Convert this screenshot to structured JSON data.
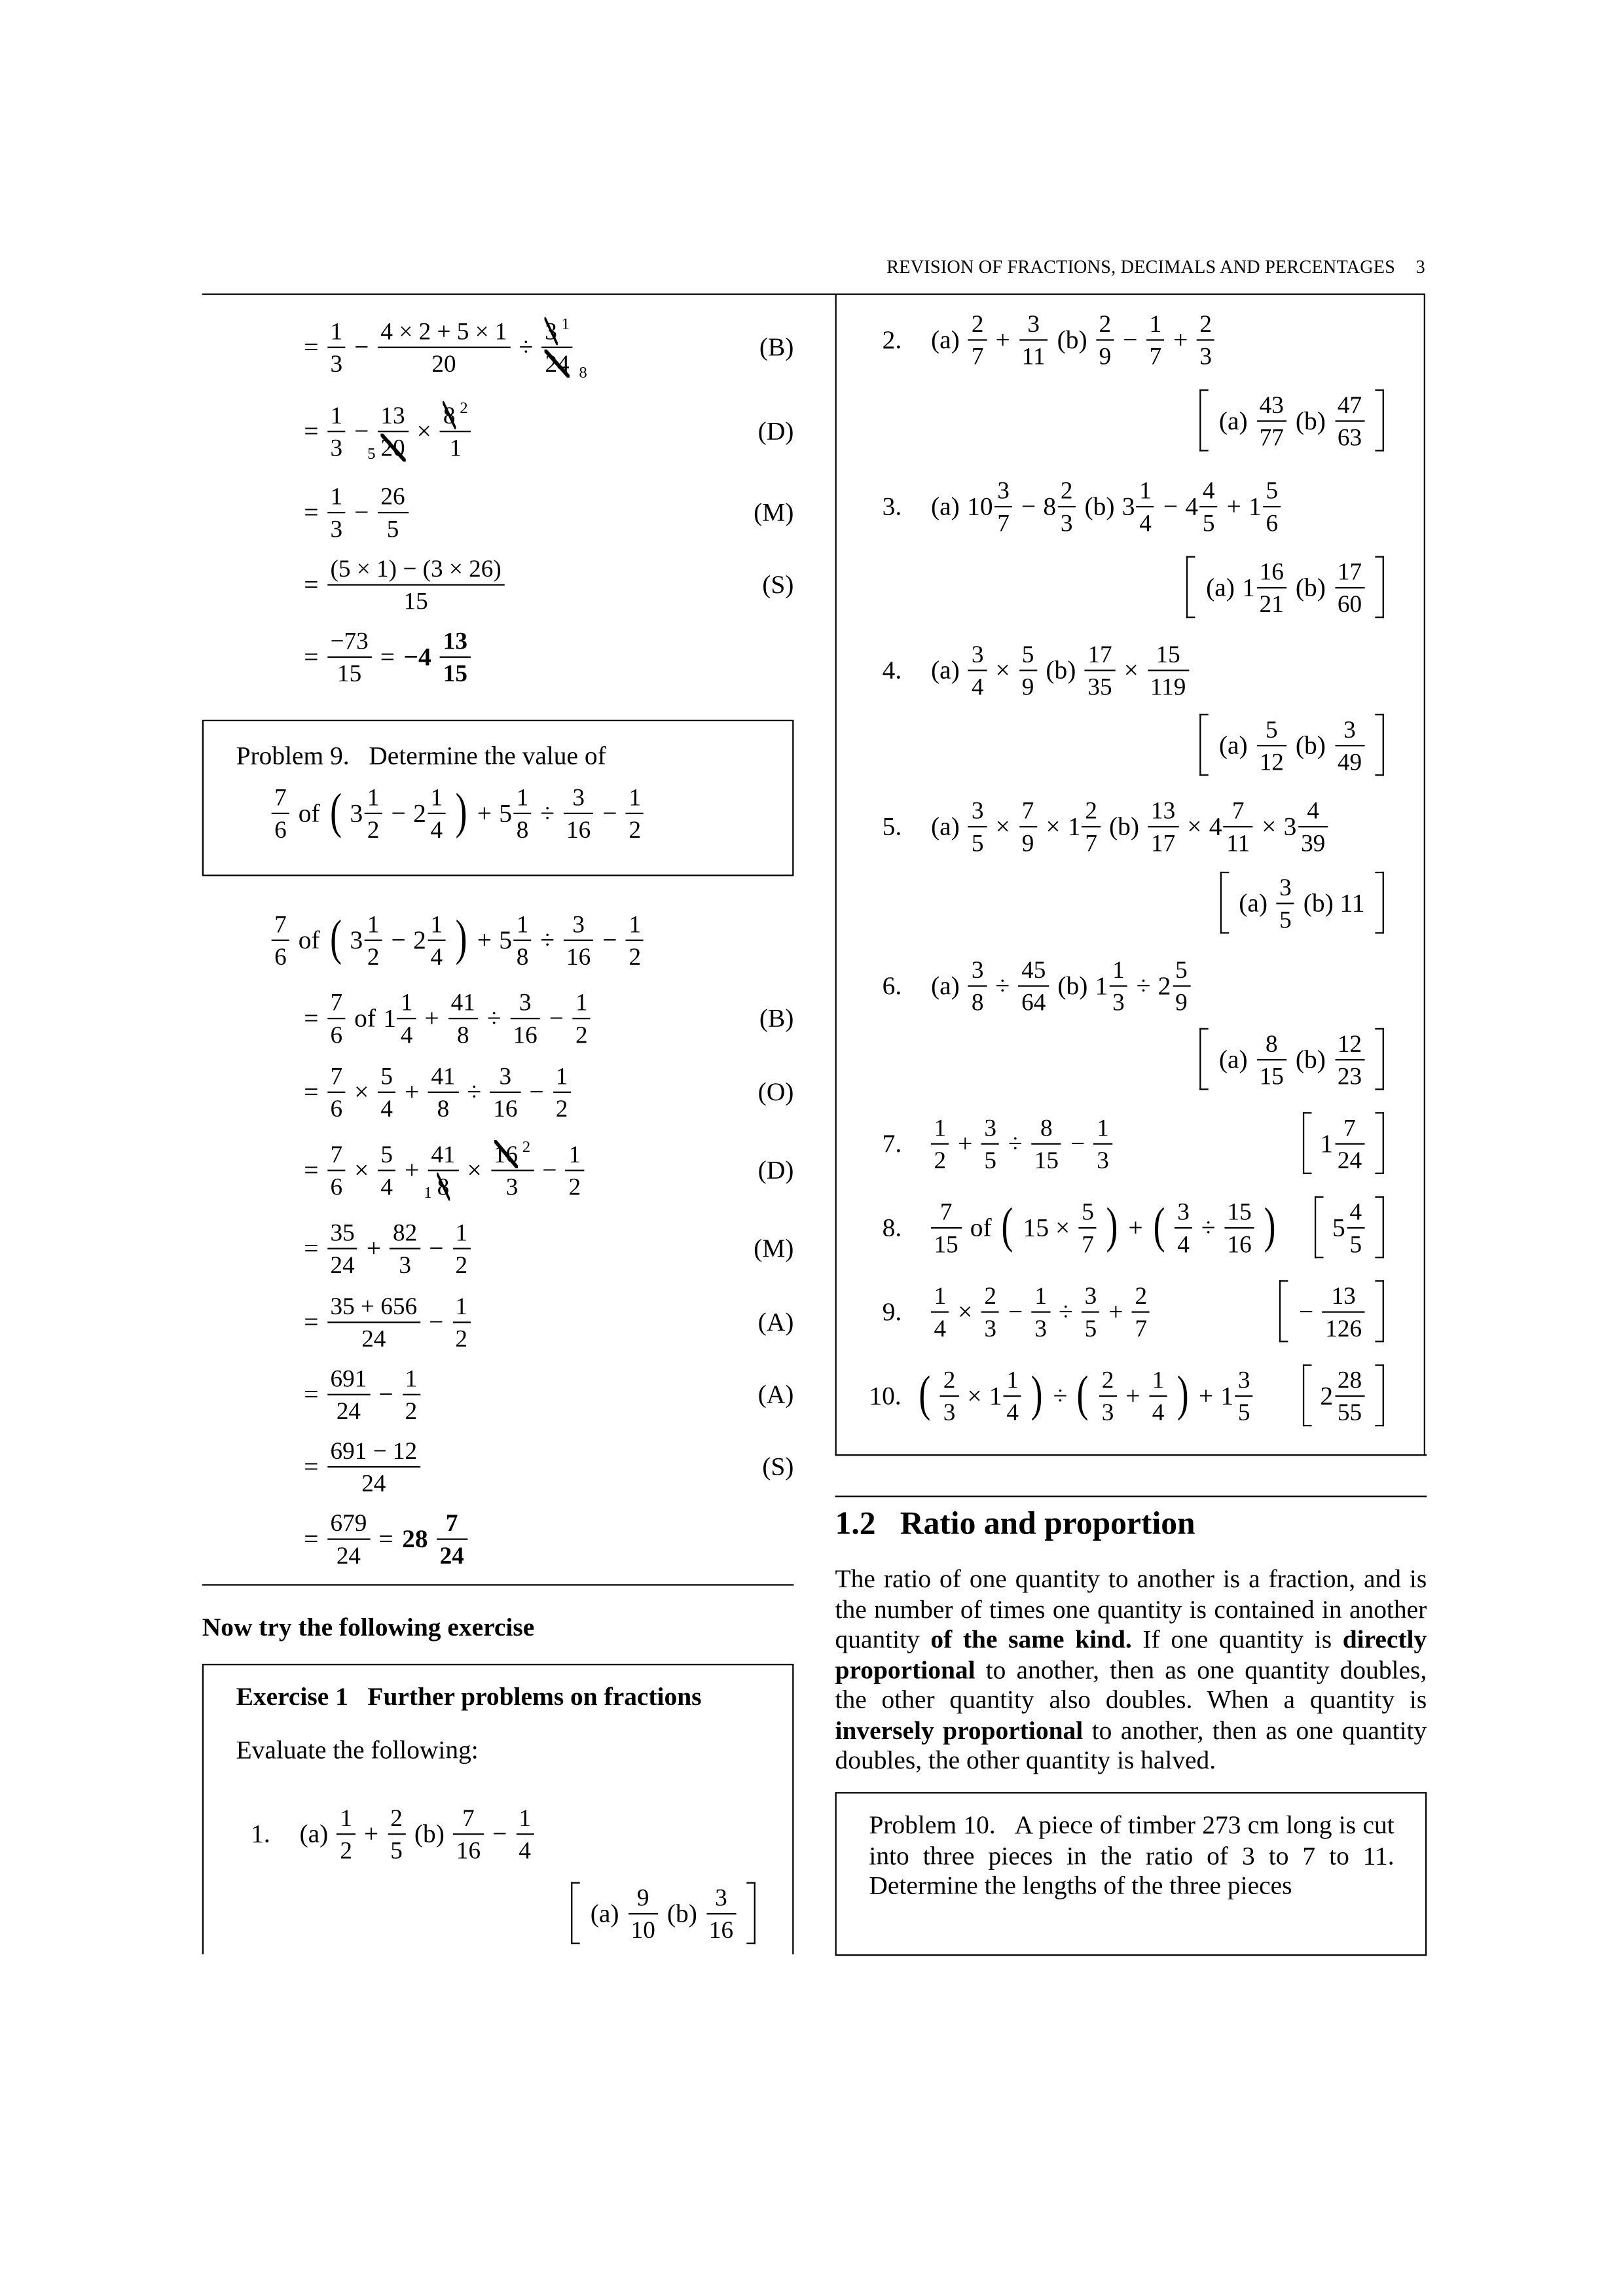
{
  "header": {
    "title": "REVISION OF FRACTIONS, DECIMALS AND PERCENTAGES",
    "page": "3"
  },
  "prev_solution": [
    {
      "expr": [
        "=",
        {
          "f": [
            "1",
            "3"
          ]
        },
        "−",
        {
          "f": [
            "4 × 2 + 5 × 1",
            "20"
          ]
        },
        "÷",
        {
          "f": [
            "3",
            "24"
          ],
          "sn": "1",
          "sd": "8"
        }
      ],
      "tag": "(B)"
    },
    {
      "expr": [
        "=",
        {
          "f": [
            "1",
            "3"
          ]
        },
        "−",
        {
          "f": [
            "13",
            "20"
          ],
          "sdl": "5"
        },
        "×",
        {
          "f": [
            "8",
            "1"
          ],
          "sn": "2"
        }
      ],
      "tag": "(D)"
    },
    {
      "expr": [
        "=",
        {
          "f": [
            "1",
            "3"
          ]
        },
        "−",
        {
          "f": [
            "26",
            "5"
          ]
        }
      ],
      "tag": "(M)"
    },
    {
      "expr": [
        "=",
        {
          "f": [
            "(5 × 1) − (3 × 26)",
            "15"
          ]
        }
      ],
      "tag": "(S)"
    },
    {
      "expr": [
        "=",
        {
          "f": [
            "−73",
            "15"
          ]
        },
        "=",
        {
          "b": "−4"
        },
        {
          "bf": [
            "13",
            "15"
          ]
        }
      ],
      "tag": ""
    }
  ],
  "problem9": {
    "label": "Problem 9.",
    "text": "Determine the value of",
    "expr": [
      {
        "f": [
          "7",
          "6"
        ]
      },
      "of",
      {
        "paren": "("
      },
      {
        "m": [
          "3",
          "1",
          "2"
        ]
      },
      "−",
      {
        "m": [
          "2",
          "1",
          "4"
        ]
      },
      {
        "paren": ")"
      },
      "+",
      {
        "m": [
          "5",
          "1",
          "8"
        ]
      },
      "÷",
      {
        "f": [
          "3",
          "16"
        ]
      },
      "−",
      {
        "f": [
          "1",
          "2"
        ]
      }
    ]
  },
  "solution9": [
    {
      "expr": [
        {
          "f": [
            "7",
            "6"
          ]
        },
        "of",
        {
          "paren": "("
        },
        {
          "m": [
            "3",
            "1",
            "2"
          ]
        },
        "−",
        {
          "m": [
            "2",
            "1",
            "4"
          ]
        },
        {
          "paren": ")"
        },
        "+",
        {
          "m": [
            "5",
            "1",
            "8"
          ]
        },
        "÷",
        {
          "f": [
            "3",
            "16"
          ]
        },
        "−",
        {
          "f": [
            "1",
            "2"
          ]
        }
      ],
      "tag": ""
    },
    {
      "expr": [
        "=",
        {
          "f": [
            "7",
            "6"
          ]
        },
        "of",
        {
          "m": [
            "1",
            "1",
            "4"
          ]
        },
        "+",
        {
          "f": [
            "41",
            "8"
          ]
        },
        "÷",
        {
          "f": [
            "3",
            "16"
          ]
        },
        "−",
        {
          "f": [
            "1",
            "2"
          ]
        }
      ],
      "tag": "(B)"
    },
    {
      "expr": [
        "=",
        {
          "f": [
            "7",
            "6"
          ]
        },
        "×",
        {
          "f": [
            "5",
            "4"
          ]
        },
        "+",
        {
          "f": [
            "41",
            "8"
          ]
        },
        "÷",
        {
          "f": [
            "3",
            "16"
          ]
        },
        "−",
        {
          "f": [
            "1",
            "2"
          ]
        }
      ],
      "tag": "(O)"
    },
    {
      "expr": [
        "=",
        {
          "f": [
            "7",
            "6"
          ]
        },
        "×",
        {
          "f": [
            "5",
            "4"
          ]
        },
        "+",
        {
          "f": [
            "41",
            "8"
          ],
          "sdl": "1"
        },
        "×",
        {
          "f": [
            "16",
            "3"
          ],
          "sn": "2"
        },
        "−",
        {
          "f": [
            "1",
            "2"
          ]
        }
      ],
      "tag": "(D)"
    },
    {
      "expr": [
        "=",
        {
          "f": [
            "35",
            "24"
          ]
        },
        "+",
        {
          "f": [
            "82",
            "3"
          ]
        },
        "−",
        {
          "f": [
            "1",
            "2"
          ]
        }
      ],
      "tag": "(M)"
    },
    {
      "expr": [
        "=",
        {
          "f": [
            "35 + 656",
            "24"
          ]
        },
        "−",
        {
          "f": [
            "1",
            "2"
          ]
        }
      ],
      "tag": "(A)"
    },
    {
      "expr": [
        "=",
        {
          "f": [
            "691",
            "24"
          ]
        },
        "−",
        {
          "f": [
            "1",
            "2"
          ]
        }
      ],
      "tag": "(A)"
    },
    {
      "expr": [
        "=",
        {
          "f": [
            "691 − 12",
            "24"
          ]
        }
      ],
      "tag": "(S)"
    },
    {
      "expr": [
        "=",
        {
          "f": [
            "679",
            "24"
          ]
        },
        "=",
        {
          "b": "28"
        },
        {
          "bf": [
            "7",
            "24"
          ]
        }
      ],
      "tag": ""
    }
  ],
  "now_try": "Now try the following exercise",
  "exercise": {
    "label": "Exercise 1",
    "title": "Further problems on fractions",
    "instruction": "Evaluate the following:",
    "items": [
      {
        "num": "1.",
        "q": [
          "(a)",
          {
            "f": [
              "1",
              "2"
            ]
          },
          "+",
          {
            "f": [
              "2",
              "5"
            ]
          },
          "(b)",
          {
            "f": [
              "7",
              "16"
            ]
          },
          "−",
          {
            "f": [
              "1",
              "4"
            ]
          }
        ],
        "ans": [
          {
            "brk": "["
          },
          "(a)",
          {
            "f": [
              "9",
              "10"
            ]
          },
          "(b)",
          {
            "f": [
              "3",
              "16"
            ]
          },
          {
            "brk": "]"
          }
        ]
      },
      {
        "num": "2.",
        "q": [
          "(a)",
          {
            "f": [
              "2",
              "7"
            ]
          },
          "+",
          {
            "f": [
              "3",
              "11"
            ]
          },
          "(b)",
          {
            "f": [
              "2",
              "9"
            ]
          },
          "−",
          {
            "f": [
              "1",
              "7"
            ]
          },
          "+",
          {
            "f": [
              "2",
              "3"
            ]
          }
        ],
        "ans": [
          {
            "brk": "["
          },
          "(a)",
          {
            "f": [
              "43",
              "77"
            ]
          },
          "(b)",
          {
            "f": [
              "47",
              "63"
            ]
          },
          {
            "brk": "]"
          }
        ]
      },
      {
        "num": "3.",
        "q": [
          "(a)",
          {
            "m": [
              "10",
              "3",
              "7"
            ]
          },
          "−",
          {
            "m": [
              "8",
              "2",
              "3"
            ]
          },
          "(b)",
          {
            "m": [
              "3",
              "1",
              "4"
            ]
          },
          "−",
          {
            "m": [
              "4",
              "4",
              "5"
            ]
          },
          "+",
          {
            "m": [
              "1",
              "5",
              "6"
            ]
          }
        ],
        "ans": [
          {
            "brk": "["
          },
          "(a)",
          {
            "m": [
              "1",
              "16",
              "21"
            ]
          },
          "(b)",
          {
            "f": [
              "17",
              "60"
            ]
          },
          {
            "brk": "]"
          }
        ]
      },
      {
        "num": "4.",
        "q": [
          "(a)",
          {
            "f": [
              "3",
              "4"
            ]
          },
          "×",
          {
            "f": [
              "5",
              "9"
            ]
          },
          "(b)",
          {
            "f": [
              "17",
              "35"
            ]
          },
          "×",
          {
            "f": [
              "15",
              "119"
            ]
          }
        ],
        "ans": [
          {
            "brk": "["
          },
          "(a)",
          {
            "f": [
              "5",
              "12"
            ]
          },
          "(b)",
          {
            "f": [
              "3",
              "49"
            ]
          },
          {
            "brk": "]"
          }
        ]
      },
      {
        "num": "5.",
        "q": [
          "(a)",
          {
            "f": [
              "3",
              "5"
            ]
          },
          "×",
          {
            "f": [
              "7",
              "9"
            ]
          },
          "×",
          {
            "m": [
              "1",
              "2",
              "7"
            ]
          },
          "(b)",
          {
            "f": [
              "13",
              "17"
            ]
          },
          "×",
          {
            "m": [
              "4",
              "7",
              "11"
            ]
          },
          "×",
          {
            "m": [
              "3",
              "4",
              "39"
            ]
          }
        ],
        "ans": [
          {
            "brk": "["
          },
          "(a)",
          {
            "f": [
              "3",
              "5"
            ]
          },
          "(b) 11",
          {
            "brk": "]"
          }
        ]
      },
      {
        "num": "6.",
        "q": [
          "(a)",
          {
            "f": [
              "3",
              "8"
            ]
          },
          "÷",
          {
            "f": [
              "45",
              "64"
            ]
          },
          "(b)",
          {
            "m": [
              "1",
              "1",
              "3"
            ]
          },
          "÷",
          {
            "m": [
              "2",
              "5",
              "9"
            ]
          }
        ],
        "ans": [
          {
            "brk": "["
          },
          "(a)",
          {
            "f": [
              "8",
              "15"
            ]
          },
          "(b)",
          {
            "f": [
              "12",
              "23"
            ]
          },
          {
            "brk": "]"
          }
        ]
      },
      {
        "num": "7.",
        "q": [
          {
            "f": [
              "1",
              "2"
            ]
          },
          "+",
          {
            "f": [
              "3",
              "5"
            ]
          },
          "÷",
          {
            "f": [
              "8",
              "15"
            ]
          },
          "−",
          {
            "f": [
              "1",
              "3"
            ]
          }
        ],
        "ans": [
          {
            "brk": "["
          },
          {
            "m": [
              "1",
              "7",
              "24"
            ]
          },
          {
            "brk": "]"
          }
        ]
      },
      {
        "num": "8.",
        "q": [
          {
            "f": [
              "7",
              "15"
            ]
          },
          "of",
          {
            "paren": "("
          },
          "15 ×",
          {
            "f": [
              "5",
              "7"
            ]
          },
          {
            "paren": ")"
          },
          "+",
          {
            "paren": "("
          },
          {
            "f": [
              "3",
              "4"
            ]
          },
          "÷",
          {
            "f": [
              "15",
              "16"
            ]
          },
          {
            "paren": ")"
          }
        ],
        "ans": [
          {
            "brk": "["
          },
          {
            "m": [
              "5",
              "4",
              "5"
            ]
          },
          {
            "brk": "]"
          }
        ]
      },
      {
        "num": "9.",
        "q": [
          {
            "f": [
              "1",
              "4"
            ]
          },
          "×",
          {
            "f": [
              "2",
              "3"
            ]
          },
          "−",
          {
            "f": [
              "1",
              "3"
            ]
          },
          "÷",
          {
            "f": [
              "3",
              "5"
            ]
          },
          "+",
          {
            "f": [
              "2",
              "7"
            ]
          }
        ],
        "ans": [
          {
            "brk": "["
          },
          "−",
          {
            "f": [
              "13",
              "126"
            ]
          },
          {
            "brk": "]"
          }
        ]
      },
      {
        "num": "10.",
        "q": [
          {
            "paren": "("
          },
          {
            "f": [
              "2",
              "3"
            ]
          },
          "×",
          {
            "m": [
              "1",
              "1",
              "4"
            ]
          },
          {
            "paren": ")"
          },
          "÷",
          {
            "paren": "("
          },
          {
            "f": [
              "2",
              "3"
            ]
          },
          "+",
          {
            "f": [
              "1",
              "4"
            ]
          },
          {
            "paren": ")"
          },
          "+",
          {
            "m": [
              "1",
              "3",
              "5"
            ]
          }
        ],
        "ans": [
          {
            "brk": "["
          },
          {
            "m": [
              "2",
              "28",
              "55"
            ]
          },
          {
            "brk": "]"
          }
        ]
      }
    ]
  },
  "section": {
    "number": "1.2",
    "title": "Ratio and proportion",
    "paragraph": [
      {
        "t": "The ratio of one quantity to another is a fraction, and is the number of times one quantity is contained in another quantity ",
        "b": false
      },
      {
        "t": "of the same kind.",
        "b": true
      },
      {
        "t": " If one quantity is ",
        "b": false
      },
      {
        "t": "directly proportional",
        "b": true
      },
      {
        "t": " to another, then as one quantity doubles, the other quantity also doubles. When a quantity is ",
        "b": false
      },
      {
        "t": "inversely proportional",
        "b": true
      },
      {
        "t": " to another, then as one quantity doubles, the other quantity is halved.",
        "b": false
      }
    ]
  },
  "problem10": {
    "label": "Problem 10.",
    "text": "A piece of timber 273 cm long is cut into three pieces in the ratio of 3 to 7 to 11. Determine the lengths of the three pieces"
  }
}
